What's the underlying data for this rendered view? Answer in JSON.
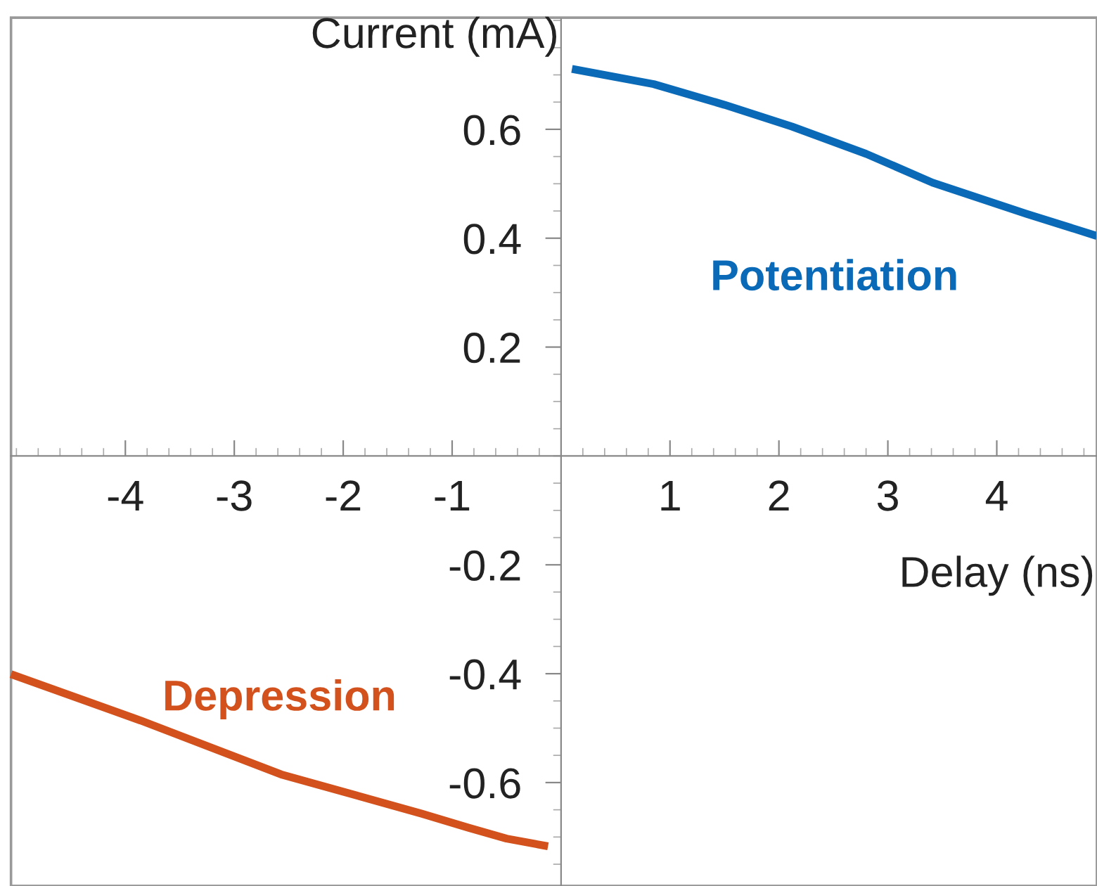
{
  "chart_data": {
    "type": "line",
    "xlabel": "Delay (ns)",
    "ylabel": "Current (mA)",
    "xlim": [
      -5.05,
      4.92
    ],
    "ylim": [
      -0.79,
      0.805
    ],
    "xticks": [
      -4,
      -3,
      -2,
      -1,
      1,
      2,
      3,
      4
    ],
    "yticks": [
      -0.6,
      -0.4,
      -0.2,
      0.2,
      0.4,
      0.6
    ],
    "grid": false,
    "marker": "none",
    "line_style": "solid",
    "series": [
      {
        "name": "Potentiation",
        "color": "#0a6ab8",
        "x": [
          0.1,
          0.85,
          1.5,
          2.12,
          2.8,
          3.41,
          4.27,
          4.92
        ],
        "values": [
          0.711,
          0.683,
          0.645,
          0.605,
          0.555,
          0.502,
          0.445,
          0.404
        ]
      },
      {
        "name": "Depression",
        "color": "#d2511c",
        "x": [
          -5.05,
          -3.86,
          -2.57,
          -1.28,
          -0.85,
          -0.5,
          -0.12
        ],
        "values": [
          -0.401,
          -0.486,
          -0.585,
          -0.657,
          -0.683,
          -0.703,
          -0.717
        ]
      }
    ]
  }
}
